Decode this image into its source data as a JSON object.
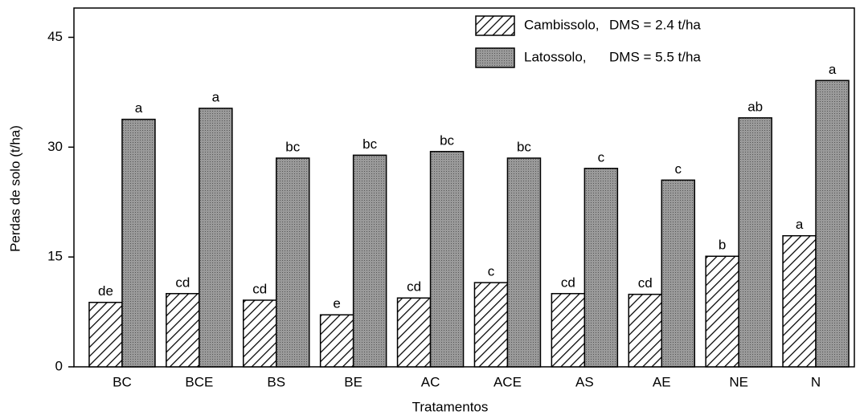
{
  "chart_data": {
    "type": "bar",
    "x_label": "Tratamentos",
    "y_label": "Perdas de solo (t/ha)",
    "categories": [
      "BC",
      "BCE",
      "BS",
      "BE",
      "AC",
      "ACE",
      "AS",
      "AE",
      "NE",
      "N"
    ],
    "series": [
      {
        "name": "Cambissolo,",
        "dms": "DMS = 2.4 t/ha",
        "color": "#ffffff",
        "hatch": true,
        "values": [
          8.8,
          10.0,
          9.1,
          7.1,
          9.4,
          11.5,
          10.0,
          9.9,
          15.1,
          17.9
        ],
        "value_labels": [
          "de",
          "cd",
          "cd",
          "e",
          "cd",
          "c",
          "cd",
          "cd",
          "b",
          "a"
        ]
      },
      {
        "name": "Latossolo,",
        "dms": "DMS = 5.5 t/ha",
        "color": "#9a9a9a",
        "hatch": false,
        "values": [
          33.8,
          35.3,
          28.5,
          28.9,
          29.4,
          28.5,
          27.1,
          25.5,
          34.0,
          39.1
        ],
        "value_labels": [
          "a",
          "a",
          "bc",
          "bc",
          "bc",
          "bc",
          "c",
          "c",
          "ab",
          "a"
        ]
      }
    ],
    "ylim": [
      0,
      49
    ],
    "yticks": [
      0,
      15,
      30,
      45
    ],
    "grid": false
  }
}
